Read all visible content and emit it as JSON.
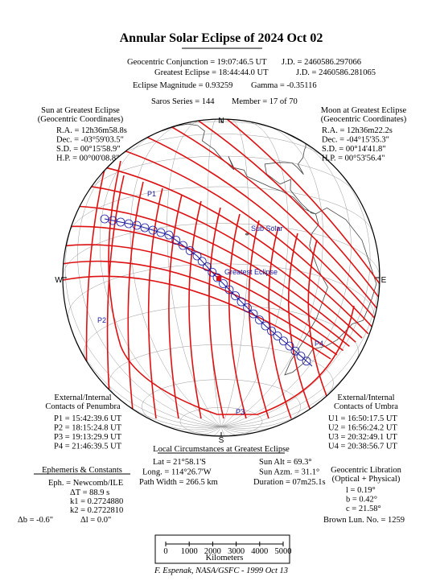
{
  "header": {
    "title": "Annular Solar Eclipse of 2024 Oct 02",
    "conjunction": "Geocentric Conjunction = 19:07:46.5 UT",
    "conjunction_jd": "J.D. = 2460586.297066",
    "greatest": "Greatest Eclipse = 18:44:44.0 UT",
    "greatest_jd": "J.D. = 2460586.281065",
    "magnitude": "Eclipse Magnitude = 0.93259",
    "gamma": "Gamma = -0.35116",
    "saros": "Saros Series = 144",
    "member": "Member = 17 of 70"
  },
  "sun": {
    "title": [
      "Sun at Greatest Eclipse",
      "(Geocentric Coordinates)"
    ],
    "lines": [
      "R.A. = 12h36m58.8s",
      "Dec. = -03°59'03.5\"",
      "S.D. = 00°15'58.9\"",
      "H.P. = 00°00'08.8\""
    ]
  },
  "moon": {
    "title": [
      "Moon at Greatest Eclipse",
      "(Geocentric Coordinates)"
    ],
    "lines": [
      "R.A. = 12h36m22.2s",
      "Dec. = -04°15'35.3\"",
      "S.D. = 00°14'41.8\"",
      "H.P. = 00°53'56.4\""
    ]
  },
  "map": {
    "north": "N",
    "south": "S",
    "east": "E",
    "west": "W",
    "p1": "P1",
    "p2": "P2",
    "p3": "P3",
    "p4": "P4",
    "sub_solar": "Sub Solar",
    "greatest_eclipse": "Greatest Eclipse"
  },
  "penumbra": {
    "title": [
      "External/Internal",
      "Contacts of Penumbra"
    ],
    "lines": [
      "P1 = 15:42:39.6 UT",
      "P2 = 18:15:24.8 UT",
      "P3 = 19:13:29.9 UT",
      "P4 = 21:46:39.5 UT"
    ]
  },
  "umbra": {
    "title": [
      "External/Internal",
      "Contacts of Umbra"
    ],
    "lines": [
      "U1 = 16:50:17.5 UT",
      "U2 = 16:56:24.2 UT",
      "U3 = 20:32:49.1 UT",
      "U4 = 20:38:56.7 UT"
    ]
  },
  "local": {
    "title": "Local Circumstances at Greatest Eclipse",
    "left": [
      "Lat = 21°58.1'S",
      "Long. = 114°26.7'W",
      "Path Width = 266.5 km"
    ],
    "right": [
      "Sun Alt = 69.3°",
      "Sun Azm. = 31.1°",
      "Duration = 07m25.1s"
    ]
  },
  "ephemeris": {
    "title": "Ephemeris & Constants",
    "eph": "Eph. = Newcomb/ILE",
    "dt": "ΔT = 88.9 s",
    "k1": "k1 = 0.2724880",
    "k2": "k2 = 0.2722810",
    "db": "Δb = -0.6\"",
    "dl": "Δl = 0.0\""
  },
  "libration": {
    "title": [
      "Geocentric Libration",
      "(Optical + Physical)"
    ],
    "lines": [
      "l = 0.19°",
      "b = 0.42°",
      "c = 21.58°"
    ],
    "brown": "Brown Lun. No. = 1259"
  },
  "scale": {
    "labels": [
      "0",
      "1000",
      "2000",
      "3000",
      "4000",
      "5000"
    ],
    "unit": "Kilometers"
  },
  "footer": "F. Espenak, NASA/GSFC - 1999 Oct 13"
}
